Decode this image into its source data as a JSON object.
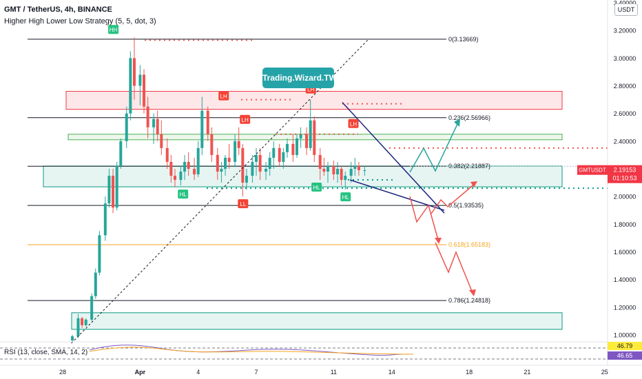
{
  "header": {
    "title": "GMT / TetherUS, 4h, BINANCE",
    "indicator": "Higher High Lower Low Strategy (5, 5, dot, 3)"
  },
  "currency_button": "USDT",
  "watermark": "Trading.Wizard.TW",
  "price_tag": {
    "symbol": "GMTUSDT",
    "price": "2.19153",
    "countdown": "01:10:53"
  },
  "rsi": {
    "label": "RSI (13, close, SMA, 14, 2)",
    "value_1": "46.79",
    "value_2": "46.65"
  },
  "colors": {
    "up": "#26a69a",
    "down": "#ef5350",
    "accent": "#26a3a8",
    "fib_orange": "#f7a41d",
    "trend": "#1a237e"
  },
  "chart_data": {
    "type": "candlestick",
    "symbol": "GMT / TetherUS",
    "timeframe": "4h",
    "exchange": "BINANCE",
    "y_axis": {
      "ticks": [
        "3.40000",
        "3.20000",
        "3.00000",
        "2.80000",
        "2.60000",
        "2.40000",
        "2.20000",
        "2.00000",
        "1.80000",
        "1.60000",
        "1.40000",
        "1.20000",
        "1.00000"
      ],
      "ylim": [
        0.97,
        3.42
      ]
    },
    "x_axis": {
      "ticks": [
        "28",
        "Apr",
        "4",
        "7",
        "11",
        "14",
        "18",
        "21",
        "25"
      ]
    },
    "fibonacci": [
      {
        "label": "0(3.13669)",
        "value": 3.13669
      },
      {
        "label": "0.236(2.56966)",
        "value": 2.56966
      },
      {
        "label": "0.382(2.21887)",
        "value": 2.21887
      },
      {
        "label": "0.5(1.93535)",
        "value": 1.93535
      },
      {
        "label": "0.618(1.65183)",
        "value": 1.65183
      },
      {
        "label": "0.786(1.24818)",
        "value": 1.24818
      }
    ],
    "zones": [
      {
        "type": "resistance",
        "top": 2.76,
        "bottom": 2.63
      },
      {
        "type": "resistance",
        "top": 2.45,
        "bottom": 2.41
      },
      {
        "type": "support",
        "top": 2.22,
        "bottom": 2.07
      },
      {
        "type": "support",
        "top": 1.16,
        "bottom": 1.04
      }
    ],
    "pivots": [
      {
        "label": "HH",
        "day": 30.6,
        "value": 3.15,
        "kind": "high"
      },
      {
        "label": "LH",
        "day": 36.3,
        "value": 2.67,
        "kind": "high"
      },
      {
        "label": "LH",
        "day": 37.4,
        "value": 2.5,
        "kind": "high"
      },
      {
        "label": "LH",
        "day": 40.8,
        "value": 2.72,
        "kind": "high"
      },
      {
        "label": "LH",
        "day": 43.0,
        "value": 2.47,
        "kind": "high"
      },
      {
        "label": "HL",
        "day": 34.2,
        "value": 2.07,
        "kind": "low"
      },
      {
        "label": "LL",
        "day": 37.3,
        "value": 2.0,
        "kind": "low"
      },
      {
        "label": "HL",
        "day": 41.1,
        "value": 2.12,
        "kind": "low"
      },
      {
        "label": "HL",
        "day": 42.6,
        "value": 2.05,
        "kind": "low"
      }
    ],
    "last_price": 2.19153,
    "series": [
      {
        "values": [
          {
            "t": 28.5,
            "o": 0.96,
            "h": 1.0,
            "l": 0.95,
            "c": 0.99
          },
          {
            "t": 28.8,
            "o": 0.99,
            "h": 1.15,
            "l": 0.98,
            "c": 1.12
          },
          {
            "t": 29.0,
            "o": 1.12,
            "h": 1.13,
            "l": 1.05,
            "c": 1.07
          },
          {
            "t": 29.2,
            "o": 1.07,
            "h": 1.12,
            "l": 1.06,
            "c": 1.11
          },
          {
            "t": 29.5,
            "o": 1.11,
            "h": 1.3,
            "l": 1.1,
            "c": 1.28
          },
          {
            "t": 29.7,
            "o": 1.28,
            "h": 1.48,
            "l": 1.26,
            "c": 1.45
          },
          {
            "t": 29.9,
            "o": 1.45,
            "h": 1.75,
            "l": 1.43,
            "c": 1.72
          },
          {
            "t": 30.2,
            "o": 1.72,
            "h": 2.0,
            "l": 1.68,
            "c": 1.95
          },
          {
            "t": 30.4,
            "o": 1.95,
            "h": 2.2,
            "l": 1.92,
            "c": 2.15
          },
          {
            "t": 30.6,
            "o": 2.15,
            "h": 2.2,
            "l": 1.88,
            "c": 1.92
          },
          {
            "t": 30.8,
            "o": 1.92,
            "h": 2.25,
            "l": 1.9,
            "c": 2.22
          },
          {
            "t": 31.0,
            "o": 2.22,
            "h": 2.42,
            "l": 2.2,
            "c": 2.4
          },
          {
            "t": 31.3,
            "o": 2.4,
            "h": 2.65,
            "l": 2.35,
            "c": 2.6
          },
          {
            "t": 31.5,
            "o": 2.6,
            "h": 3.05,
            "l": 2.55,
            "c": 3.0
          },
          {
            "t": 31.7,
            "o": 3.0,
            "h": 3.15,
            "l": 2.7,
            "c": 2.8
          },
          {
            "t": 32.0,
            "o": 2.8,
            "h": 2.95,
            "l": 2.66,
            "c": 2.88
          },
          {
            "t": 32.2,
            "o": 2.88,
            "h": 2.92,
            "l": 2.6,
            "c": 2.65
          },
          {
            "t": 32.4,
            "o": 2.65,
            "h": 2.72,
            "l": 2.42,
            "c": 2.5
          },
          {
            "t": 32.7,
            "o": 2.5,
            "h": 2.6,
            "l": 2.38,
            "c": 2.56
          },
          {
            "t": 32.9,
            "o": 2.56,
            "h": 2.62,
            "l": 2.4,
            "c": 2.45
          },
          {
            "t": 33.1,
            "o": 2.45,
            "h": 2.55,
            "l": 2.3,
            "c": 2.35
          },
          {
            "t": 33.4,
            "o": 2.35,
            "h": 2.42,
            "l": 2.2,
            "c": 2.25
          },
          {
            "t": 33.6,
            "o": 2.25,
            "h": 2.3,
            "l": 2.1,
            "c": 2.15
          },
          {
            "t": 33.8,
            "o": 2.15,
            "h": 2.2,
            "l": 2.07,
            "c": 2.12
          },
          {
            "t": 34.1,
            "o": 2.12,
            "h": 2.22,
            "l": 2.08,
            "c": 2.18
          },
          {
            "t": 34.3,
            "o": 2.18,
            "h": 2.3,
            "l": 2.12,
            "c": 2.25
          },
          {
            "t": 34.5,
            "o": 2.25,
            "h": 2.32,
            "l": 2.15,
            "c": 2.2
          },
          {
            "t": 34.8,
            "o": 2.2,
            "h": 2.28,
            "l": 2.12,
            "c": 2.16
          },
          {
            "t": 35.0,
            "o": 2.16,
            "h": 2.4,
            "l": 2.14,
            "c": 2.35
          },
          {
            "t": 35.2,
            "o": 2.35,
            "h": 2.72,
            "l": 2.3,
            "c": 2.62
          },
          {
            "t": 35.5,
            "o": 2.62,
            "h": 2.65,
            "l": 2.4,
            "c": 2.45
          },
          {
            "t": 35.7,
            "o": 2.45,
            "h": 2.5,
            "l": 2.25,
            "c": 2.3
          },
          {
            "t": 36.0,
            "o": 2.3,
            "h": 2.35,
            "l": 2.12,
            "c": 2.18
          },
          {
            "t": 36.2,
            "o": 2.18,
            "h": 2.25,
            "l": 2.1,
            "c": 2.2
          },
          {
            "t": 36.4,
            "o": 2.2,
            "h": 2.3,
            "l": 2.15,
            "c": 2.28
          },
          {
            "t": 36.6,
            "o": 2.28,
            "h": 2.38,
            "l": 2.2,
            "c": 2.25
          },
          {
            "t": 36.9,
            "o": 2.25,
            "h": 2.45,
            "l": 2.22,
            "c": 2.4
          },
          {
            "t": 37.1,
            "o": 2.4,
            "h": 2.5,
            "l": 2.3,
            "c": 2.35
          },
          {
            "t": 37.3,
            "o": 2.35,
            "h": 2.38,
            "l": 2.0,
            "c": 2.1
          },
          {
            "t": 37.5,
            "o": 2.1,
            "h": 2.2,
            "l": 2.05,
            "c": 2.15
          },
          {
            "t": 37.8,
            "o": 2.15,
            "h": 2.3,
            "l": 2.1,
            "c": 2.25
          },
          {
            "t": 38.0,
            "o": 2.25,
            "h": 2.35,
            "l": 2.15,
            "c": 2.3
          },
          {
            "t": 38.2,
            "o": 2.3,
            "h": 2.35,
            "l": 2.12,
            "c": 2.18
          },
          {
            "t": 38.5,
            "o": 2.18,
            "h": 2.25,
            "l": 2.12,
            "c": 2.2
          },
          {
            "t": 38.7,
            "o": 2.2,
            "h": 2.32,
            "l": 2.15,
            "c": 2.28
          },
          {
            "t": 38.9,
            "o": 2.28,
            "h": 2.4,
            "l": 2.2,
            "c": 2.35
          },
          {
            "t": 39.2,
            "o": 2.35,
            "h": 2.38,
            "l": 2.22,
            "c": 2.25
          },
          {
            "t": 39.4,
            "o": 2.25,
            "h": 2.35,
            "l": 2.2,
            "c": 2.32
          },
          {
            "t": 39.6,
            "o": 2.32,
            "h": 2.42,
            "l": 2.28,
            "c": 2.38
          },
          {
            "t": 39.9,
            "o": 2.38,
            "h": 2.45,
            "l": 2.25,
            "c": 2.3
          },
          {
            "t": 40.1,
            "o": 2.3,
            "h": 2.45,
            "l": 2.28,
            "c": 2.42
          },
          {
            "t": 40.3,
            "o": 2.42,
            "h": 2.5,
            "l": 2.35,
            "c": 2.45
          },
          {
            "t": 40.6,
            "o": 2.45,
            "h": 2.5,
            "l": 2.3,
            "c": 2.35
          },
          {
            "t": 40.8,
            "o": 2.35,
            "h": 2.7,
            "l": 2.33,
            "c": 2.55
          },
          {
            "t": 41.0,
            "o": 2.55,
            "h": 2.58,
            "l": 2.25,
            "c": 2.3
          },
          {
            "t": 41.3,
            "o": 2.3,
            "h": 2.35,
            "l": 2.12,
            "c": 2.2
          },
          {
            "t": 41.5,
            "o": 2.2,
            "h": 2.28,
            "l": 2.15,
            "c": 2.18
          },
          {
            "t": 41.7,
            "o": 2.18,
            "h": 2.25,
            "l": 2.1,
            "c": 2.22
          },
          {
            "t": 42.0,
            "o": 2.22,
            "h": 2.26,
            "l": 2.12,
            "c": 2.16
          },
          {
            "t": 42.2,
            "o": 2.16,
            "h": 2.25,
            "l": 2.1,
            "c": 2.2
          },
          {
            "t": 42.4,
            "o": 2.2,
            "h": 2.22,
            "l": 2.08,
            "c": 2.12
          },
          {
            "t": 42.6,
            "o": 2.12,
            "h": 2.18,
            "l": 2.05,
            "c": 2.15
          },
          {
            "t": 42.9,
            "o": 2.15,
            "h": 2.25,
            "l": 2.1,
            "c": 2.2
          },
          {
            "t": 43.1,
            "o": 2.2,
            "h": 2.28,
            "l": 2.15,
            "c": 2.22
          },
          {
            "t": 43.3,
            "o": 2.22,
            "h": 2.25,
            "l": 2.15,
            "c": 2.19
          },
          {
            "t": 43.6,
            "o": 2.19,
            "h": 2.22,
            "l": 2.15,
            "c": 2.19
          }
        ]
      }
    ]
  }
}
